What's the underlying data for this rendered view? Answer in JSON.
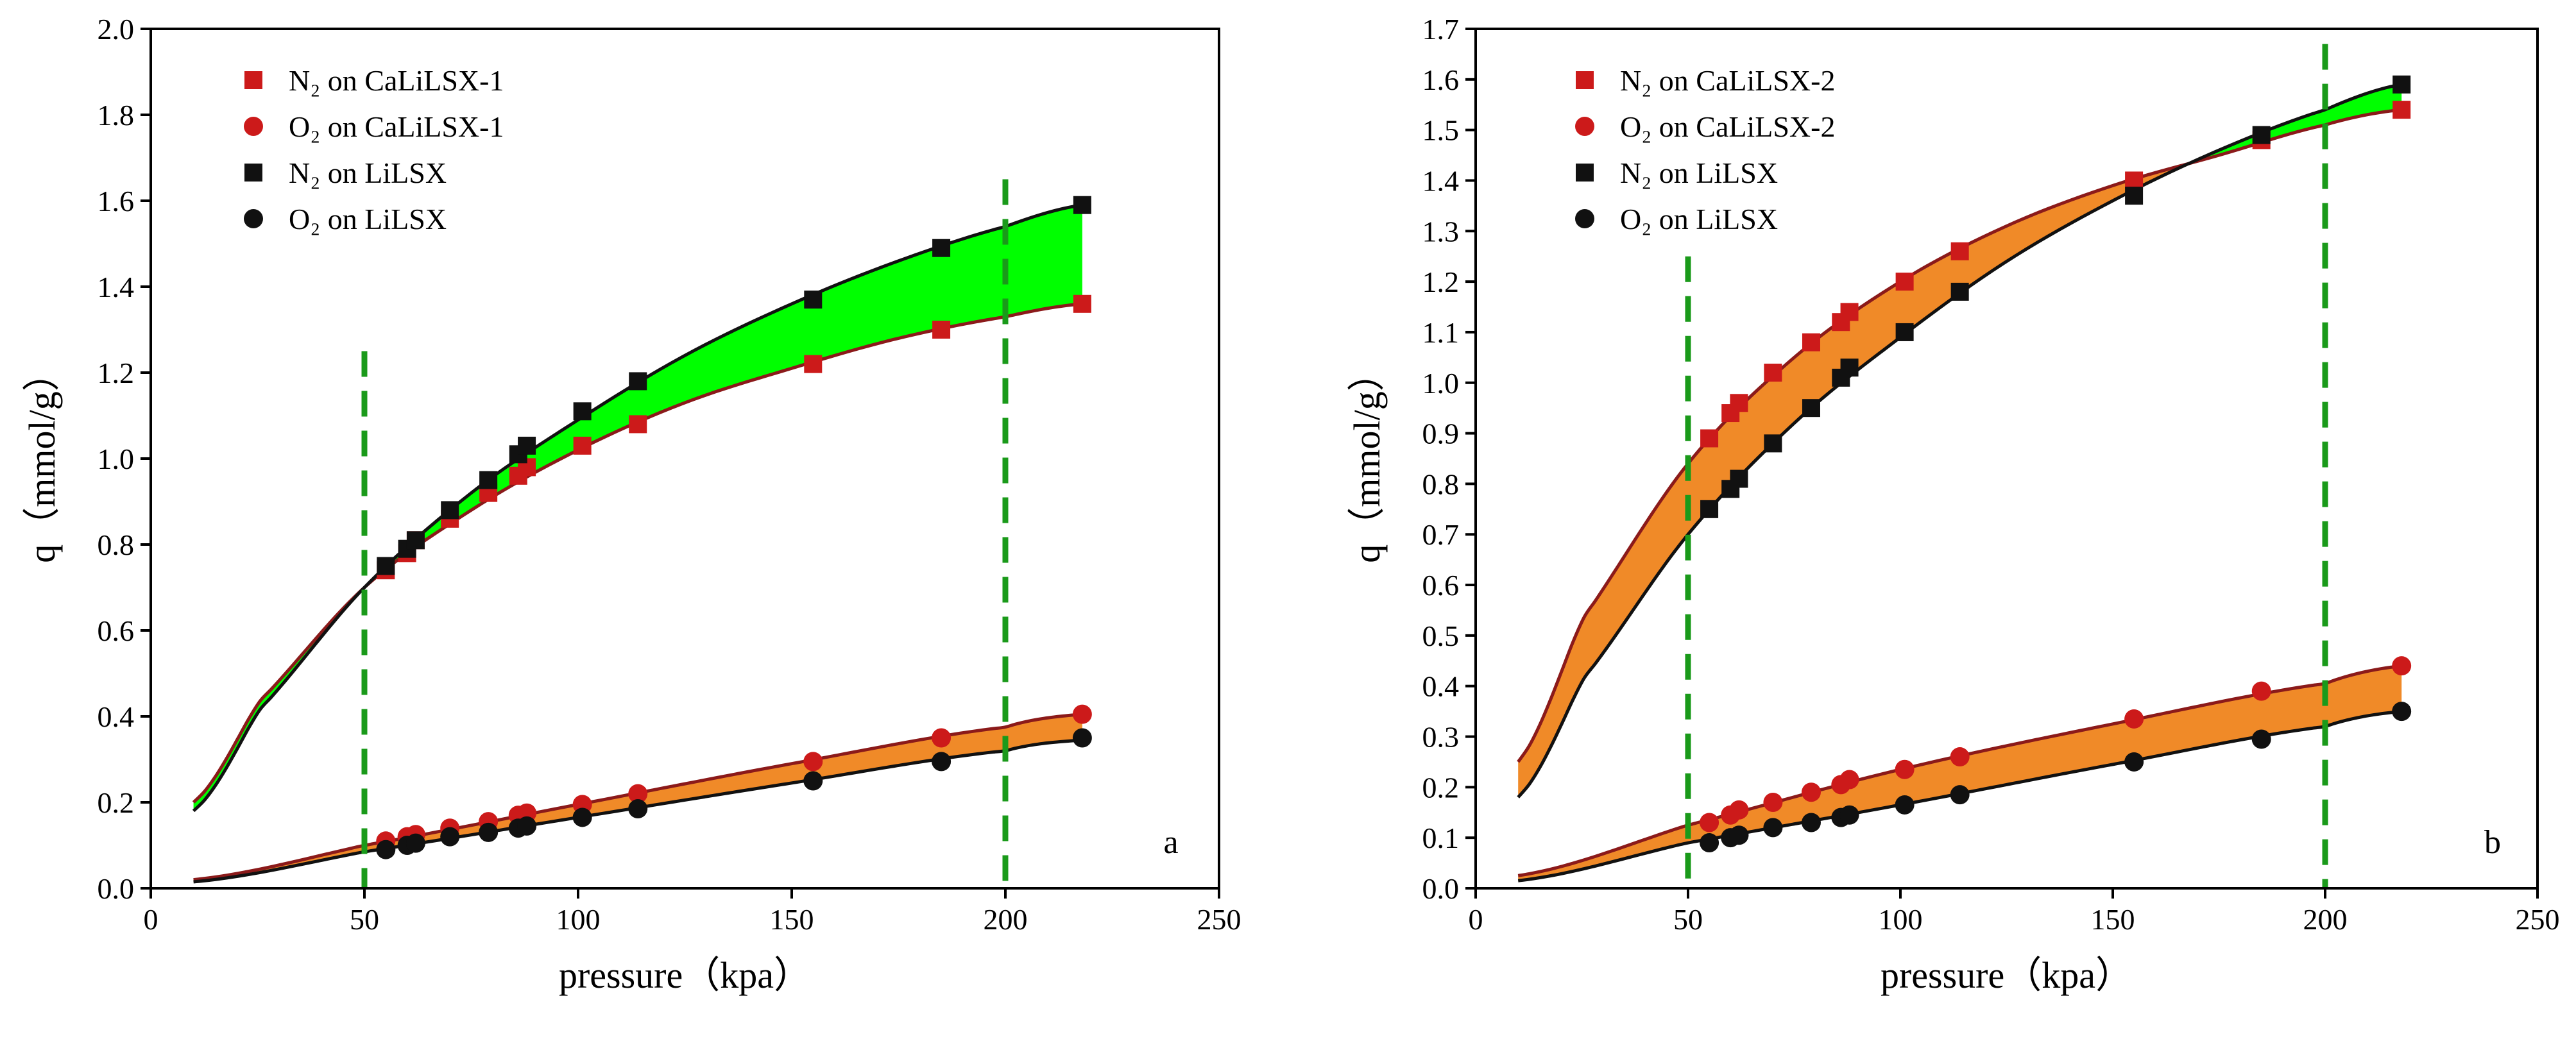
{
  "colors": {
    "red": "#cc1a1a",
    "black": "#111111",
    "green_fill": "#00ff00",
    "orange_fill": "#f08a28",
    "curve_dark_red": "#8b1a1a",
    "guide_green": "#1a9a1a"
  },
  "chart_data": [
    {
      "type": "scatter",
      "panel": "a",
      "xlabel": "pressure（kpa）",
      "ylabel": "q（mmol/g）",
      "xlim": [
        0,
        250
      ],
      "ylim": [
        0,
        2.0
      ],
      "xticks": [
        0,
        50,
        100,
        150,
        200,
        250
      ],
      "yticks": [
        0.0,
        0.2,
        0.4,
        0.6,
        0.8,
        1.0,
        1.2,
        1.4,
        1.6,
        1.8,
        2.0
      ],
      "xtick_labels": [
        "0",
        "50",
        "100",
        "150",
        "200",
        "250"
      ],
      "ytick_labels": [
        "0.0",
        "0.2",
        "0.4",
        "0.6",
        "0.8",
        "1.0",
        "1.2",
        "1.4",
        "1.6",
        "1.8",
        "2.0"
      ],
      "vlines": [
        50,
        200
      ],
      "legend": [
        {
          "label": "N₂ on CaLiLSX-1",
          "marker": "square",
          "color": "#cc1a1a"
        },
        {
          "label": "O₂ on CaLiLSX-1",
          "marker": "circle",
          "color": "#cc1a1a"
        },
        {
          "label": "N₂ on LiLSX",
          "marker": "square",
          "color": "#111111"
        },
        {
          "label": "O₂ on LiLSX",
          "marker": "circle",
          "color": "#111111"
        }
      ],
      "series": [
        {
          "name": "N₂ on CaLiLSX-1",
          "marker": "square",
          "color": "#cc1a1a",
          "x": [
            55,
            60,
            62,
            70,
            79,
            86,
            88,
            101,
            114,
            155,
            185,
            218
          ],
          "y": [
            0.74,
            0.78,
            0.81,
            0.86,
            0.92,
            0.96,
            0.98,
            1.03,
            1.08,
            1.22,
            1.3,
            1.36
          ]
        },
        {
          "name": "O₂ on CaLiLSX-1",
          "marker": "circle",
          "color": "#cc1a1a",
          "x": [
            55,
            60,
            62,
            70,
            79,
            86,
            88,
            101,
            114,
            155,
            185,
            218
          ],
          "y": [
            0.11,
            0.12,
            0.125,
            0.14,
            0.155,
            0.17,
            0.175,
            0.195,
            0.22,
            0.295,
            0.35,
            0.405
          ]
        },
        {
          "name": "N₂ on LiLSX",
          "marker": "square",
          "color": "#111111",
          "x": [
            55,
            60,
            62,
            70,
            79,
            86,
            88,
            101,
            114,
            155,
            185,
            218
          ],
          "y": [
            0.75,
            0.79,
            0.81,
            0.88,
            0.95,
            1.01,
            1.03,
            1.11,
            1.18,
            1.37,
            1.49,
            1.59
          ]
        },
        {
          "name": "O₂ on LiLSX",
          "marker": "circle",
          "color": "#111111",
          "x": [
            55,
            60,
            62,
            70,
            79,
            86,
            88,
            101,
            114,
            155,
            185,
            218
          ],
          "y": [
            0.09,
            0.1,
            0.105,
            0.12,
            0.13,
            0.14,
            0.145,
            0.165,
            0.185,
            0.25,
            0.295,
            0.35
          ]
        }
      ],
      "fits": [
        {
          "name": "N₂ on CaLiLSX-1 fit",
          "color": "#8b1a1a",
          "x": [
            10,
            25,
            50,
            75,
            100,
            125,
            150,
            175,
            200,
            218
          ],
          "y": [
            0.2,
            0.43,
            0.7,
            0.88,
            1.02,
            1.13,
            1.21,
            1.28,
            1.33,
            1.36
          ]
        },
        {
          "name": "N₂ on LiLSX fit",
          "color": "#111111",
          "x": [
            10,
            25,
            50,
            75,
            100,
            125,
            150,
            175,
            200,
            218
          ],
          "y": [
            0.18,
            0.41,
            0.7,
            0.92,
            1.09,
            1.24,
            1.36,
            1.46,
            1.54,
            1.59
          ]
        },
        {
          "name": "O₂ on CaLiLSX-1 fit",
          "color": "#8b1a1a",
          "x": [
            10,
            50,
            100,
            150,
            200,
            218
          ],
          "y": [
            0.02,
            0.1,
            0.195,
            0.29,
            0.375,
            0.405
          ]
        },
        {
          "name": "O₂ on LiLSX fit",
          "color": "#111111",
          "x": [
            10,
            50,
            100,
            150,
            200,
            218
          ],
          "y": [
            0.015,
            0.085,
            0.165,
            0.245,
            0.32,
            0.345
          ]
        }
      ],
      "bands": [
        {
          "between": [
            "N₂ on CaLiLSX-1 fit",
            "N₂ on LiLSX fit"
          ],
          "color": "#00ff00"
        },
        {
          "between": [
            "O₂ on CaLiLSX-1 fit",
            "O₂ on LiLSX fit"
          ],
          "color": "#f08a28"
        }
      ]
    },
    {
      "type": "scatter",
      "panel": "b",
      "xlabel": "pressure（kpa）",
      "ylabel": "q（mmol/g）",
      "xlim": [
        0,
        250
      ],
      "ylim": [
        0,
        1.7
      ],
      "xticks": [
        0,
        50,
        100,
        150,
        200,
        250
      ],
      "yticks": [
        0.0,
        0.1,
        0.2,
        0.3,
        0.4,
        0.5,
        0.6,
        0.7,
        0.8,
        0.9,
        1.0,
        1.1,
        1.2,
        1.3,
        1.4,
        1.5,
        1.6,
        1.7
      ],
      "xtick_labels": [
        "0",
        "50",
        "100",
        "150",
        "200",
        "250"
      ],
      "ytick_labels": [
        "0.0",
        "0.1",
        "0.2",
        "0.3",
        "0.4",
        "0.5",
        "0.6",
        "0.7",
        "0.8",
        "0.9",
        "1.0",
        "1.1",
        "1.2",
        "1.3",
        "1.4",
        "1.5",
        "1.6",
        "1.7"
      ],
      "vlines": [
        50,
        200
      ],
      "legend": [
        {
          "label": "N₂ on CaLiLSX-2",
          "marker": "square",
          "color": "#cc1a1a"
        },
        {
          "label": "O₂ on CaLiLSX-2",
          "marker": "circle",
          "color": "#cc1a1a"
        },
        {
          "label": "N₂ on LiLSX",
          "marker": "square",
          "color": "#111111"
        },
        {
          "label": "O₂ on LiLSX",
          "marker": "circle",
          "color": "#111111"
        }
      ],
      "series": [
        {
          "name": "N₂ on CaLiLSX-2",
          "marker": "square",
          "color": "#cc1a1a",
          "x": [
            55,
            60,
            62,
            70,
            79,
            86,
            88,
            101,
            114,
            155,
            185,
            218
          ],
          "y": [
            0.89,
            0.94,
            0.96,
            1.02,
            1.08,
            1.12,
            1.14,
            1.2,
            1.26,
            1.4,
            1.48,
            1.54
          ]
        },
        {
          "name": "O₂ on CaLiLSX-2",
          "marker": "circle",
          "color": "#cc1a1a",
          "x": [
            55,
            60,
            62,
            70,
            79,
            86,
            88,
            101,
            114,
            155,
            185,
            218
          ],
          "y": [
            0.13,
            0.145,
            0.155,
            0.17,
            0.19,
            0.205,
            0.215,
            0.235,
            0.26,
            0.335,
            0.39,
            0.44
          ]
        },
        {
          "name": "N₂ on LiLSX",
          "marker": "square",
          "color": "#111111",
          "x": [
            55,
            60,
            62,
            70,
            79,
            86,
            88,
            101,
            114,
            155,
            185,
            218
          ],
          "y": [
            0.75,
            0.79,
            0.81,
            0.88,
            0.95,
            1.01,
            1.03,
            1.1,
            1.18,
            1.37,
            1.49,
            1.59
          ]
        },
        {
          "name": "O₂ on LiLSX",
          "marker": "circle",
          "color": "#111111",
          "x": [
            55,
            60,
            62,
            70,
            79,
            86,
            88,
            101,
            114,
            155,
            185,
            218
          ],
          "y": [
            0.09,
            0.1,
            0.105,
            0.12,
            0.13,
            0.14,
            0.145,
            0.165,
            0.185,
            0.25,
            0.295,
            0.35
          ]
        }
      ],
      "fits": [
        {
          "name": "N₂ on CaLiLSX-2 fit",
          "color": "#8b1a1a",
          "x": [
            10,
            25,
            50,
            75,
            100,
            125,
            150,
            175,
            200,
            218
          ],
          "y": [
            0.25,
            0.53,
            0.84,
            1.05,
            1.2,
            1.31,
            1.39,
            1.45,
            1.51,
            1.54
          ]
        },
        {
          "name": "N₂ on LiLSX fit",
          "color": "#111111",
          "x": [
            10,
            25,
            50,
            75,
            100,
            125,
            150,
            175,
            200,
            218
          ],
          "y": [
            0.18,
            0.41,
            0.7,
            0.92,
            1.09,
            1.24,
            1.36,
            1.46,
            1.54,
            1.59
          ]
        },
        {
          "name": "O₂ on CaLiLSX-2 fit",
          "color": "#8b1a1a",
          "x": [
            10,
            50,
            100,
            150,
            200,
            218
          ],
          "y": [
            0.025,
            0.125,
            0.235,
            0.325,
            0.405,
            0.44
          ]
        },
        {
          "name": "O₂ on LiLSX fit",
          "color": "#111111",
          "x": [
            10,
            50,
            100,
            150,
            200,
            218
          ],
          "y": [
            0.015,
            0.09,
            0.165,
            0.245,
            0.32,
            0.35
          ]
        }
      ],
      "bands": [
        {
          "between": [
            "N₂ on CaLiLSX-2 fit",
            "N₂ on LiLSX fit"
          ],
          "color": "#f08a28",
          "crossover_color": "#00ff00"
        },
        {
          "between": [
            "O₂ on CaLiLSX-2 fit",
            "O₂ on LiLSX fit"
          ],
          "color": "#f08a28"
        }
      ]
    }
  ]
}
